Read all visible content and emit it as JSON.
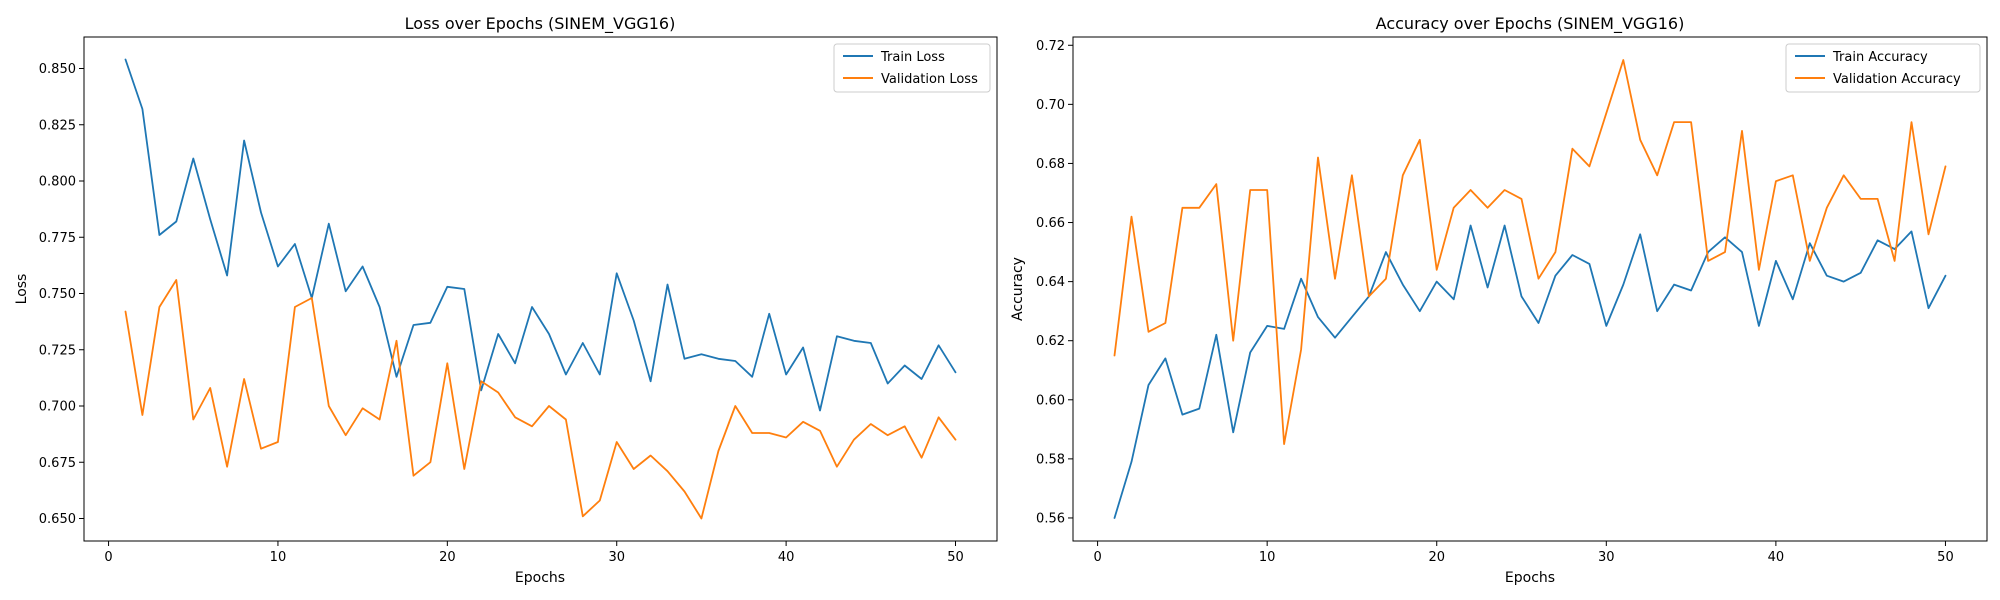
{
  "figure": {
    "colors": {
      "train": "#1f77b4",
      "validation": "#ff7f0e"
    }
  },
  "chart_data": [
    {
      "type": "line",
      "title": "Loss over Epochs (SINEM_VGG16)",
      "xlabel": "Epochs",
      "ylabel": "Loss",
      "xlim": [
        -1.45,
        52.45
      ],
      "ylim": [
        0.64,
        0.864
      ],
      "xticks": [
        0,
        10,
        20,
        30,
        40,
        50
      ],
      "yticks": [
        0.65,
        0.675,
        0.7,
        0.725,
        0.75,
        0.775,
        0.8,
        0.825,
        0.85
      ],
      "ytick_labels": [
        "0.650",
        "0.675",
        "0.700",
        "0.725",
        "0.750",
        "0.775",
        "0.800",
        "0.825",
        "0.850"
      ],
      "legend_position": "upper right",
      "grid": false,
      "x": [
        1,
        2,
        3,
        4,
        5,
        6,
        7,
        8,
        9,
        10,
        11,
        12,
        13,
        14,
        15,
        16,
        17,
        18,
        19,
        20,
        21,
        22,
        23,
        24,
        25,
        26,
        27,
        28,
        29,
        30,
        31,
        32,
        33,
        34,
        35,
        36,
        37,
        38,
        39,
        40,
        41,
        42,
        43,
        44,
        45,
        46,
        47,
        48,
        49,
        50
      ],
      "series": [
        {
          "name": "Train Loss",
          "color": "#1f77b4",
          "values": [
            0.854,
            0.832,
            0.776,
            0.782,
            0.81,
            0.783,
            0.758,
            0.818,
            0.786,
            0.762,
            0.772,
            0.748,
            0.781,
            0.751,
            0.762,
            0.744,
            0.713,
            0.736,
            0.737,
            0.753,
            0.752,
            0.707,
            0.732,
            0.719,
            0.744,
            0.732,
            0.714,
            0.728,
            0.714,
            0.759,
            0.738,
            0.711,
            0.754,
            0.721,
            0.723,
            0.721,
            0.72,
            0.713,
            0.741,
            0.714,
            0.726,
            0.698,
            0.731,
            0.729,
            0.728,
            0.71,
            0.718,
            0.712,
            0.727,
            0.715
          ]
        },
        {
          "name": "Validation Loss",
          "color": "#ff7f0e",
          "values": [
            0.742,
            0.696,
            0.744,
            0.756,
            0.694,
            0.708,
            0.673,
            0.712,
            0.681,
            0.684,
            0.744,
            0.748,
            0.7,
            0.687,
            0.699,
            0.694,
            0.729,
            0.669,
            0.675,
            0.719,
            0.672,
            0.711,
            0.706,
            0.695,
            0.691,
            0.7,
            0.694,
            0.651,
            0.658,
            0.684,
            0.672,
            0.678,
            0.671,
            0.662,
            0.65,
            0.68,
            0.7,
            0.688,
            0.688,
            0.686,
            0.693,
            0.689,
            0.673,
            0.685,
            0.692,
            0.687,
            0.691,
            0.677,
            0.695,
            0.685
          ]
        }
      ]
    },
    {
      "type": "line",
      "title": "Accuracy over Epochs (SINEM_VGG16)",
      "xlabel": "Epochs",
      "ylabel": "Accuracy",
      "xlim": [
        -1.45,
        52.45
      ],
      "ylim": [
        0.5522,
        0.7228
      ],
      "xticks": [
        0,
        10,
        20,
        30,
        40,
        50
      ],
      "yticks": [
        0.56,
        0.58,
        0.6,
        0.62,
        0.64,
        0.66,
        0.68,
        0.7,
        0.72
      ],
      "ytick_labels": [
        "0.56",
        "0.58",
        "0.60",
        "0.62",
        "0.64",
        "0.66",
        "0.68",
        "0.70",
        "0.72"
      ],
      "legend_position": "upper right",
      "grid": false,
      "x": [
        1,
        2,
        3,
        4,
        5,
        6,
        7,
        8,
        9,
        10,
        11,
        12,
        13,
        14,
        15,
        16,
        17,
        18,
        19,
        20,
        21,
        22,
        23,
        24,
        25,
        26,
        27,
        28,
        29,
        30,
        31,
        32,
        33,
        34,
        35,
        36,
        37,
        38,
        39,
        40,
        41,
        42,
        43,
        44,
        45,
        46,
        47,
        48,
        49,
        50
      ],
      "series": [
        {
          "name": "Train Accuracy",
          "color": "#1f77b4",
          "values": [
            0.56,
            0.579,
            0.605,
            0.614,
            0.595,
            0.597,
            0.622,
            0.589,
            0.616,
            0.625,
            0.624,
            0.641,
            0.628,
            0.621,
            0.628,
            0.635,
            0.65,
            0.639,
            0.63,
            0.64,
            0.634,
            0.659,
            0.638,
            0.659,
            0.635,
            0.626,
            0.642,
            0.649,
            0.646,
            0.625,
            0.639,
            0.656,
            0.63,
            0.639,
            0.637,
            0.65,
            0.655,
            0.65,
            0.625,
            0.647,
            0.634,
            0.653,
            0.642,
            0.64,
            0.643,
            0.654,
            0.651,
            0.657,
            0.631,
            0.642
          ]
        },
        {
          "name": "Validation Accuracy",
          "color": "#ff7f0e",
          "values": [
            0.615,
            0.662,
            0.623,
            0.626,
            0.665,
            0.665,
            0.673,
            0.62,
            0.671,
            0.671,
            0.585,
            0.617,
            0.682,
            0.641,
            0.676,
            0.635,
            0.641,
            0.676,
            0.688,
            0.644,
            0.665,
            0.671,
            0.665,
            0.671,
            0.668,
            0.641,
            0.65,
            0.685,
            0.679,
            0.697,
            0.715,
            0.688,
            0.676,
            0.694,
            0.694,
            0.647,
            0.65,
            0.691,
            0.644,
            0.674,
            0.676,
            0.647,
            0.665,
            0.676,
            0.668,
            0.668,
            0.647,
            0.694,
            0.656,
            0.679
          ]
        }
      ]
    }
  ]
}
